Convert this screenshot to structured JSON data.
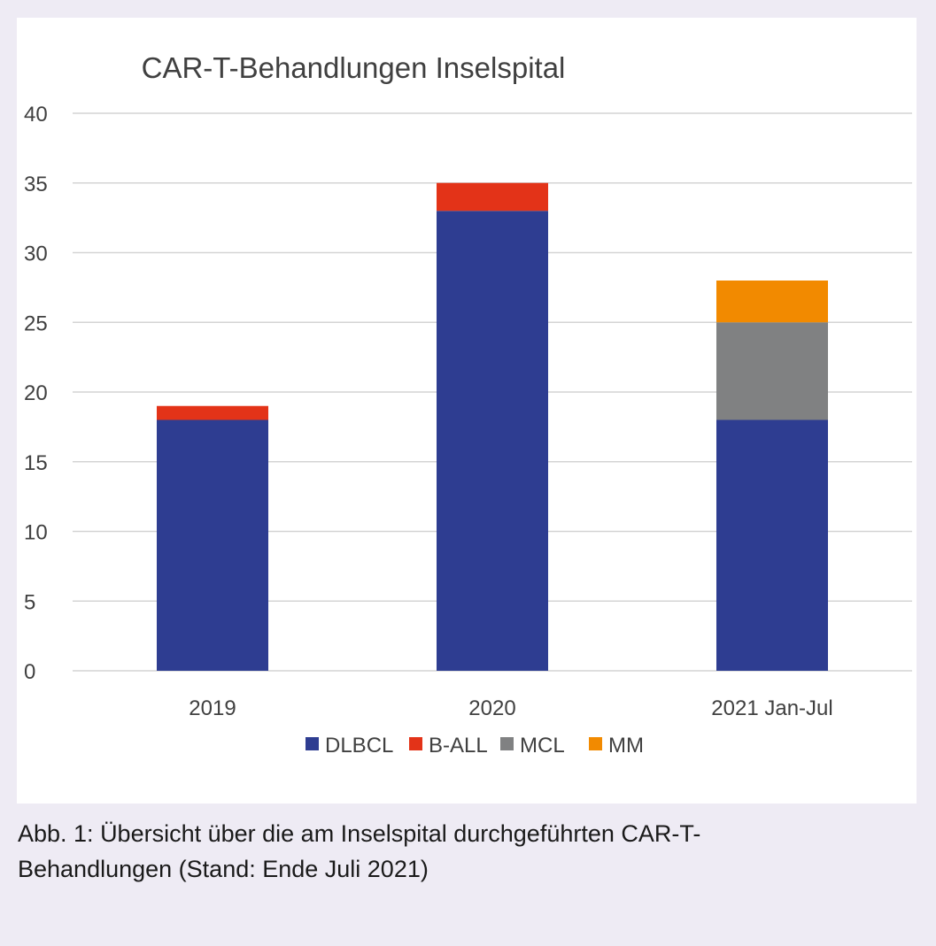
{
  "chart_data": {
    "type": "bar",
    "stacked": true,
    "title": "CAR-T-Behandlungen Inselspital",
    "xlabel": "",
    "ylabel": "",
    "categories": [
      "2019",
      "2020",
      "2021 Jan-Jul"
    ],
    "ylim": [
      0,
      40
    ],
    "yticks": [
      0,
      5,
      10,
      15,
      20,
      25,
      30,
      35,
      40
    ],
    "grid": true,
    "legend_position": "bottom",
    "series": [
      {
        "name": "DLBCL",
        "color": "#2e3d91",
        "values": [
          18,
          33,
          18
        ]
      },
      {
        "name": "B-ALL",
        "color": "#e33318",
        "values": [
          1,
          2,
          0
        ]
      },
      {
        "name": "MCL",
        "color": "#808182",
        "values": [
          0,
          0,
          7
        ]
      },
      {
        "name": "MM",
        "color": "#f28a00",
        "values": [
          0,
          0,
          3
        ]
      }
    ]
  },
  "caption": {
    "line1": "Abb. 1: Übersicht über die am Inselspital durchgeführten CAR-T-",
    "line2": "Behandlungen (Stand: Ende Juli 2021)"
  }
}
